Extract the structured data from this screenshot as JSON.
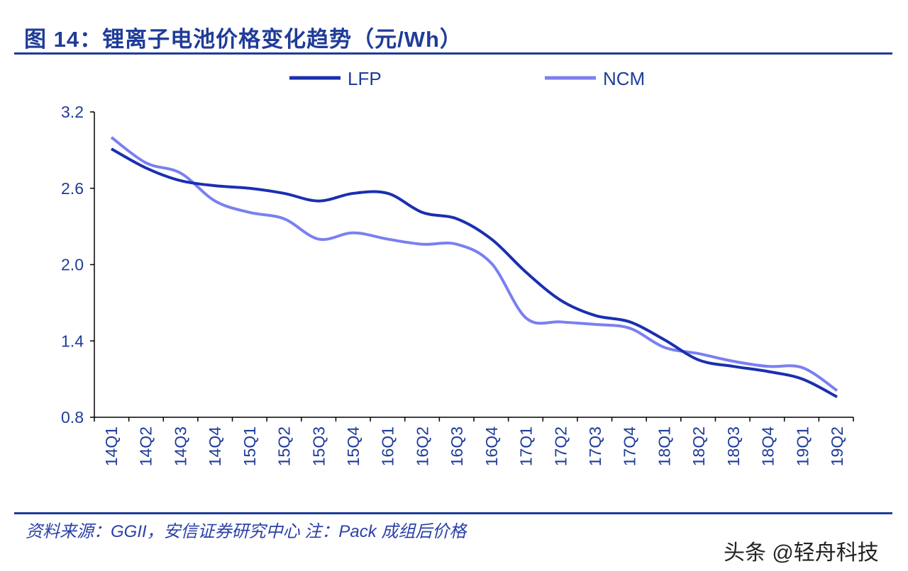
{
  "title": "图 14：锂离子电池价格变化趋势（元/Wh）",
  "footer": {
    "source": "资料来源：GGII，安信证券研究中心  注：Pack 成组后价格",
    "watermark": "头条 @轻舟科技"
  },
  "colors": {
    "title": "#1f3c99",
    "LFP": "#1a2fb0",
    "NCM": "#7b7ff0"
  },
  "chart_data": {
    "type": "line",
    "title": "图 14：锂离子电池价格变化趋势（元/Wh）",
    "xlabel": "",
    "ylabel": "",
    "ylim": [
      0.8,
      3.2
    ],
    "yticks": [
      "0.8",
      "1.4",
      "2.0",
      "2.6",
      "3.2"
    ],
    "grid": false,
    "legend_position": "top",
    "categories": [
      "14Q1",
      "14Q2",
      "14Q3",
      "14Q4",
      "15Q1",
      "15Q2",
      "15Q3",
      "15Q4",
      "16Q1",
      "16Q2",
      "16Q3",
      "16Q4",
      "17Q1",
      "17Q2",
      "17Q3",
      "17Q4",
      "18Q1",
      "18Q2",
      "18Q3",
      "18Q4",
      "19Q1",
      "19Q2"
    ],
    "series": [
      {
        "name": "LFP",
        "values": [
          2.91,
          2.76,
          2.66,
          2.62,
          2.6,
          2.56,
          2.5,
          2.56,
          2.56,
          2.41,
          2.36,
          2.2,
          1.94,
          1.72,
          1.6,
          1.55,
          1.41,
          1.25,
          1.2,
          1.16,
          1.1,
          0.96
        ]
      },
      {
        "name": "NCM",
        "values": [
          3.0,
          2.8,
          2.72,
          2.5,
          2.41,
          2.36,
          2.2,
          2.25,
          2.2,
          2.16,
          2.16,
          2.01,
          1.58,
          1.55,
          1.53,
          1.5,
          1.35,
          1.3,
          1.24,
          1.2,
          1.19,
          1.01
        ]
      }
    ]
  }
}
